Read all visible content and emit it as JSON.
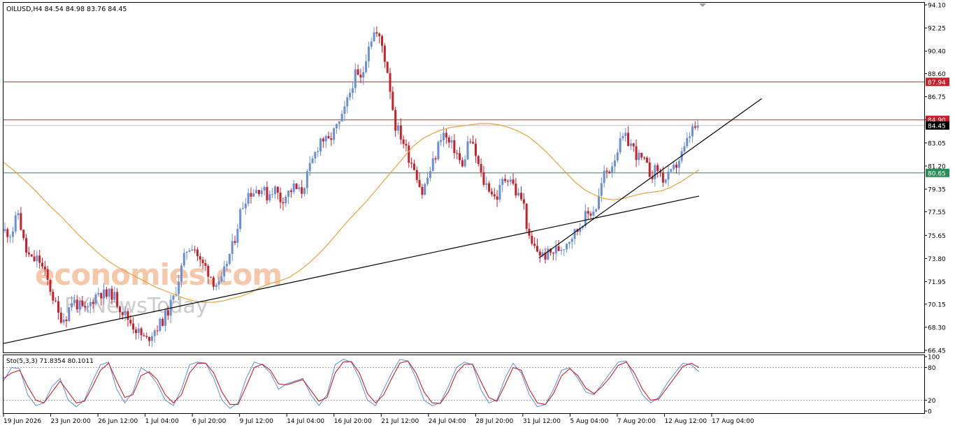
{
  "header": {
    "symbol_line": "OILUSD,H4  84.54 84.98 83.76 84.45"
  },
  "watermark": {
    "brand": "economies.com",
    "subbrand": "FXNewsToday"
  },
  "indicator": {
    "label": "Sto(5,3,3) 71.8354 80.1011",
    "levels": [
      "100",
      "80",
      "20",
      "0"
    ]
  },
  "colors": {
    "bull": "#6a8fd8",
    "bear": "#c8202a",
    "ma": "#e8a23c",
    "resistance": "#c8202a",
    "support": "#2e8b57",
    "trendline": "#000000",
    "stoch_main": "#5b8fd6",
    "stoch_signal": "#c8202a",
    "badge_dark": "#000000"
  },
  "chart_data": {
    "type": "candlestick",
    "title": "OILUSD,H4",
    "ylim": [
      66.45,
      94.1
    ],
    "price_ticks": [
      "94.10",
      "92.25",
      "90.40",
      "88.60",
      "86.75",
      "84.90",
      "83.05",
      "81.20",
      "79.35",
      "77.55",
      "75.65",
      "73.80",
      "71.95",
      "70.15",
      "68.30",
      "66.45"
    ],
    "time_labels": [
      "19 Jun 2026",
      "23 Jun 20:00",
      "26 Jun 12:00",
      "1 Jul 04:00",
      "6 Jul 20:00",
      "9 Jul 12:00",
      "14 Jul 04:00",
      "16 Jul 20:00",
      "21 Jul 12:00",
      "24 Jul 04:00",
      "28 Jul 20:00",
      "31 Jul 12:00",
      "5 Aug 04:00",
      "7 Aug 20:00",
      "12 Aug 12:00",
      "17 Aug 04:00"
    ],
    "horizontal_levels": [
      {
        "value": 87.94,
        "label": "87.94",
        "role": "resistance"
      },
      {
        "value": 84.9,
        "label": "84.90",
        "role": "resistance"
      },
      {
        "value": 84.45,
        "label": "84.45",
        "role": "current"
      },
      {
        "value": 80.65,
        "label": "80.65",
        "role": "support"
      }
    ],
    "trendlines": [
      {
        "from_index": 0,
        "from_price": 67.0,
        "to_index": 1.0,
        "to_price": 78.8
      },
      {
        "from_index": 0.77,
        "from_price": 73.85,
        "to_index": 1.09,
        "to_price": 86.6
      }
    ],
    "close_path": [
      76.0,
      75.8,
      77.5,
      74.5,
      73.6,
      73.8,
      72.5,
      71.0,
      69.2,
      69.0,
      70.5,
      70.0,
      69.5,
      70.5,
      71.2,
      70.8,
      71.0,
      70.0,
      69.2,
      68.5,
      67.8,
      67.2,
      68.0,
      68.5,
      69.3,
      70.5,
      72.5,
      74.5,
      75.0,
      73.5,
      73.0,
      72.0,
      71.5,
      73.5,
      75.0,
      77.5,
      79.0,
      79.2,
      79.5,
      78.8,
      79.5,
      78.5,
      79.0,
      79.5,
      79.0,
      80.5,
      82.0,
      83.5,
      83.0,
      84.0,
      84.8,
      86.5,
      88.5,
      88.0,
      91.0,
      92.0,
      91.0,
      88.5,
      84.5,
      83.5,
      82.0,
      81.0,
      79.0,
      80.5,
      82.0,
      84.0,
      83.0,
      82.5,
      81.0,
      83.5,
      82.0,
      80.0,
      79.5,
      78.5,
      80.0,
      80.5,
      79.0,
      78.5,
      75.0,
      74.5,
      74.0,
      74.2,
      74.5,
      74.8,
      75.5,
      76.0,
      77.0,
      77.5,
      78.0,
      80.5,
      81.0,
      82.5,
      83.5,
      83.0,
      82.0,
      81.5,
      80.5,
      81.0,
      80.0,
      80.5,
      81.5,
      82.5,
      84.0,
      84.45
    ],
    "ma_path": [
      81.5,
      80.9,
      80.2,
      79.5,
      78.7,
      77.9,
      77.2,
      76.4,
      75.6,
      74.9,
      74.2,
      73.6,
      73.1,
      72.7,
      72.3,
      71.9,
      71.5,
      71.2,
      70.9,
      70.6,
      70.4,
      70.3,
      70.3,
      70.4,
      70.6,
      70.8,
      71.1,
      71.5,
      71.8,
      72.0,
      72.3,
      72.8,
      73.4,
      74.1,
      74.9,
      75.8,
      76.7,
      77.5,
      78.3,
      79.2,
      80.1,
      81.0,
      81.9,
      82.8,
      83.4,
      83.8,
      84.1,
      84.3,
      84.4,
      84.5,
      84.6,
      84.6,
      84.5,
      84.3,
      84.0,
      83.6,
      83.0,
      82.3,
      81.5,
      80.7,
      79.9,
      79.3,
      78.9,
      78.6,
      78.5,
      78.6,
      78.8,
      79.0,
      79.1,
      79.2,
      79.5,
      79.9,
      80.4,
      80.9
    ],
    "stochastic": {
      "k_params": "5,3,3",
      "main_last": 71.8354,
      "signal_last": 80.1011,
      "levels": [
        80,
        20
      ],
      "main_path": [
        55,
        80,
        78,
        30,
        10,
        15,
        45,
        60,
        20,
        8,
        20,
        55,
        85,
        90,
        40,
        15,
        35,
        80,
        70,
        50,
        20,
        10,
        40,
        85,
        90,
        88,
        60,
        20,
        5,
        15,
        60,
        90,
        85,
        70,
        40,
        50,
        55,
        60,
        30,
        10,
        30,
        85,
        95,
        90,
        60,
        20,
        10,
        40,
        70,
        95,
        92,
        60,
        20,
        10,
        15,
        45,
        80,
        90,
        85,
        40,
        15,
        20,
        60,
        88,
        70,
        30,
        8,
        12,
        40,
        75,
        80,
        60,
        35,
        30,
        50,
        70,
        90,
        92,
        60,
        30,
        15,
        25,
        50,
        70,
        88,
        85,
        72
      ],
      "signal_path": [
        60,
        70,
        75,
        45,
        20,
        15,
        35,
        55,
        35,
        15,
        18,
        45,
        75,
        88,
        55,
        25,
        30,
        65,
        72,
        58,
        30,
        15,
        30,
        70,
        88,
        88,
        70,
        35,
        12,
        12,
        45,
        80,
        86,
        75,
        50,
        48,
        53,
        58,
        38,
        18,
        25,
        70,
        90,
        91,
        70,
        32,
        15,
        30,
        60,
        88,
        92,
        70,
        35,
        15,
        14,
        35,
        70,
        86,
        86,
        55,
        25,
        18,
        48,
        80,
        75,
        40,
        15,
        12,
        32,
        65,
        78,
        65,
        42,
        32,
        45,
        62,
        84,
        90,
        70,
        40,
        20,
        22,
        42,
        62,
        82,
        88,
        80
      ]
    }
  }
}
